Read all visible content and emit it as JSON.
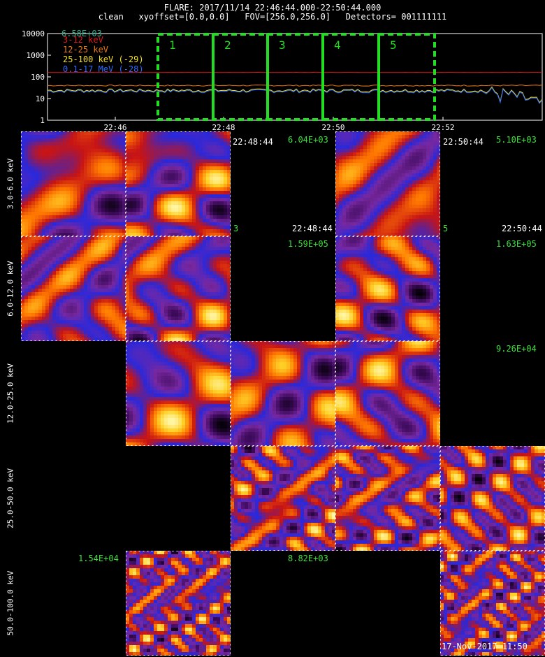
{
  "header": {
    "line1": "FLARE: 2017/11/14 22:46:44.000-22:50:44.000",
    "line2": "clean   xyoffset=[0.0,0.0]   FOV=[256.0,256.0]   Detectors= 001111111"
  },
  "lightcurve": {
    "peak_label": "6.58E+03",
    "y_ticks": [
      "10000",
      "1000",
      "100",
      "10",
      "1"
    ],
    "x_ticks": [
      "22:46",
      "22:48",
      "22:50",
      "22:52"
    ],
    "legend": [
      {
        "text": "3-12 keV",
        "color": "#e01818"
      },
      {
        "text": "12-25 keV",
        "color": "#f07a10"
      },
      {
        "text": "25-100 keV (-29)",
        "color": "#f5e020"
      },
      {
        "text": "0.1-17 MeV (-28)",
        "color": "#2a6cff"
      }
    ],
    "intervals": [
      "1",
      "2",
      "3",
      "4",
      "5"
    ],
    "accent": "#22dd22"
  },
  "energy_bands": [
    "3.0-6.0 keV",
    "6.0-12.0 keV",
    "12.0-25.0 keV",
    "25.0-50.0 keV",
    "50.0-100.0 keV"
  ],
  "panel_labels": {
    "r0_time_a": "22:48:44",
    "r0_max_a": "6.04E+03",
    "r0_time_b": "22:50:44",
    "r0_max_b": "5.10E+03",
    "r0_time_c": "22:48:44",
    "r0_time_d": "22:50:44",
    "r0_num_a": "3",
    "r0_num_b": "5",
    "r1_max_a": "1.59E+05",
    "r1_max_b": "1.63E+05",
    "r2_max": "9.26E+04",
    "r4_max_a": "1.54E+04",
    "r4_max_b": "8.82E+03"
  },
  "footer": "17-Nov-2017 11:50"
}
